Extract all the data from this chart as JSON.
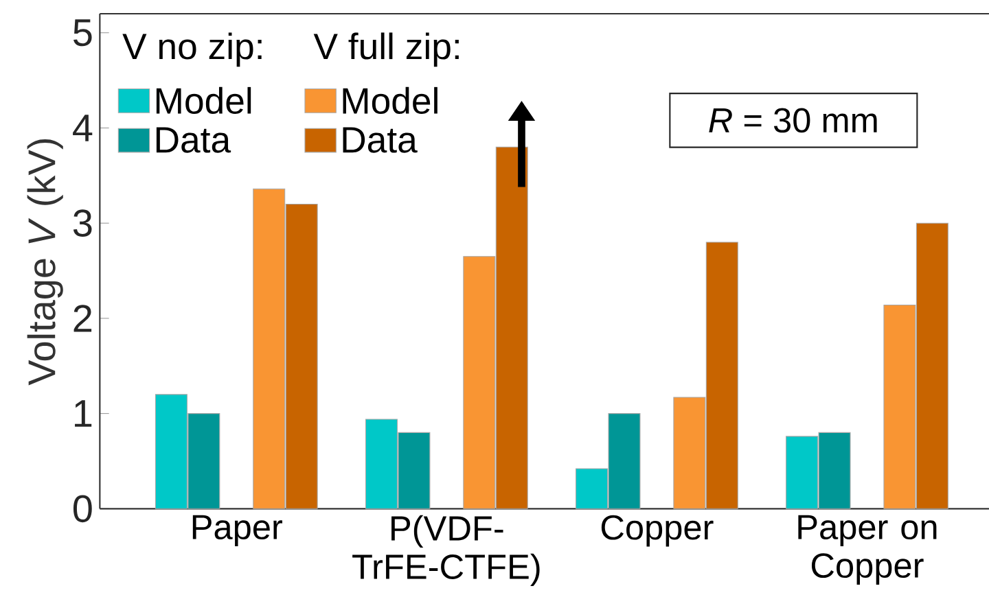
{
  "chart_data": {
    "type": "bar",
    "ylabel": "Voltage *V* (kV)",
    "categories": [
      "Paper",
      "P(VDF-TrFE-CTFE)",
      "Copper",
      "Paper on Copper"
    ],
    "series": [
      {
        "name": "Model",
        "color": "#00c8c8",
        "values": [
          1.2,
          0.94,
          0.42,
          0.76
        ]
      },
      {
        "name": "Data",
        "color": "#009696",
        "values": [
          1.0,
          0.8,
          1.0,
          0.8
        ]
      },
      {
        "name": "Model",
        "color": "#f99533",
        "values": [
          3.36,
          2.65,
          1.17,
          2.14
        ]
      },
      {
        "name": "Data",
        "color": "#c86400",
        "values": [
          3.2,
          3.8,
          2.8,
          3.0
        ]
      }
    ],
    "ylim": [
      0,
      5.2
    ],
    "yticks": [
      0,
      1,
      2,
      3,
      4,
      5
    ],
    "legend": "top left",
    "annotations": [
      "V no zip:",
      "V full zip:",
      "*R* = 30 mm"
    ]
  }
}
